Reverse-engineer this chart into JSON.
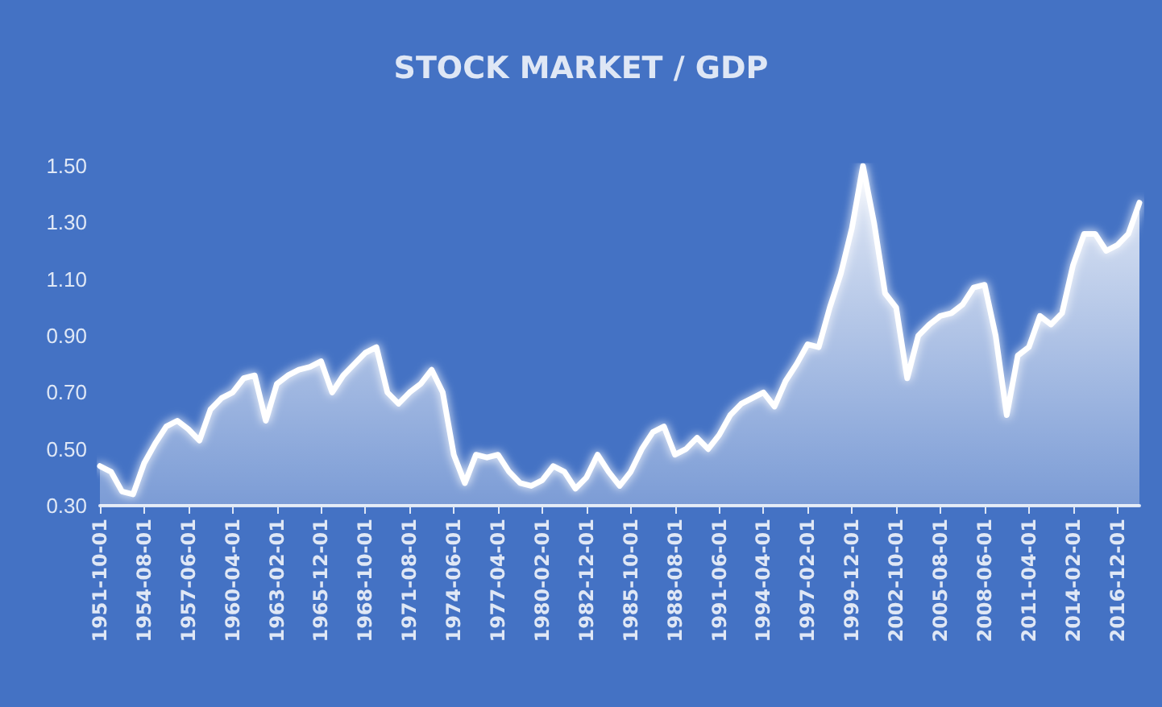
{
  "chart_data": {
    "type": "area",
    "title": "STOCK MARKET / GDP",
    "categories": [
      "1951-10-01",
      null,
      null,
      null,
      "1954-08-01",
      null,
      null,
      null,
      "1957-06-01",
      null,
      null,
      null,
      "1960-04-01",
      null,
      null,
      null,
      "1963-02-01",
      null,
      null,
      null,
      "1965-12-01",
      null,
      null,
      null,
      "1968-10-01",
      null,
      null,
      null,
      "1971-08-01",
      null,
      null,
      null,
      "1974-06-01",
      null,
      null,
      null,
      "1977-04-01",
      null,
      null,
      null,
      "1980-02-01",
      null,
      null,
      null,
      "1982-12-01",
      null,
      null,
      null,
      "1985-10-01",
      null,
      null,
      null,
      "1988-08-01",
      null,
      null,
      null,
      "1991-06-01",
      null,
      null,
      null,
      "1994-04-01",
      null,
      null,
      null,
      "1997-02-01",
      null,
      null,
      null,
      "1999-12-01",
      null,
      null,
      null,
      "2002-10-01",
      null,
      null,
      null,
      "2005-08-01",
      null,
      null,
      null,
      "2008-06-01",
      null,
      null,
      null,
      "2011-04-01",
      null,
      null,
      null,
      "2014-02-01",
      null,
      null,
      null,
      "2016-12-01",
      null,
      null
    ],
    "series": [
      {
        "color": "#ffffff",
        "values": [
          0.44,
          0.42,
          0.35,
          0.34,
          0.45,
          0.52,
          0.58,
          0.6,
          0.57,
          0.53,
          0.64,
          0.68,
          0.7,
          0.75,
          0.76,
          0.6,
          0.73,
          0.76,
          0.78,
          0.79,
          0.81,
          0.7,
          0.76,
          0.8,
          0.84,
          0.86,
          0.7,
          0.66,
          0.7,
          0.73,
          0.78,
          0.7,
          0.48,
          0.38,
          0.48,
          0.47,
          0.48,
          0.42,
          0.38,
          0.37,
          0.39,
          0.44,
          0.42,
          0.36,
          0.4,
          0.48,
          0.42,
          0.37,
          0.42,
          0.5,
          0.56,
          0.58,
          0.48,
          0.5,
          0.54,
          0.5,
          0.55,
          0.62,
          0.66,
          0.68,
          0.7,
          0.65,
          0.74,
          0.8,
          0.87,
          0.86,
          1.0,
          1.12,
          1.28,
          1.5,
          1.3,
          1.05,
          1.0,
          0.75,
          0.9,
          0.94,
          0.97,
          0.98,
          1.01,
          1.07,
          1.08,
          0.9,
          0.62,
          0.83,
          0.86,
          0.97,
          0.94,
          0.98,
          1.15,
          1.26,
          1.26,
          1.2,
          1.22,
          1.26,
          1.37
        ]
      }
    ],
    "ylim": [
      0.3,
      1.5
    ],
    "yticks": [
      {
        "value": 0.3,
        "label": "0.30"
      },
      {
        "value": 0.5,
        "label": "0.50"
      },
      {
        "value": 0.7,
        "label": "0.70"
      },
      {
        "value": 0.9,
        "label": "0.90"
      },
      {
        "value": 1.1,
        "label": "1.10"
      },
      {
        "value": 1.3,
        "label": "1.30"
      },
      {
        "value": 1.5,
        "label": "1.50"
      }
    ],
    "grid": false,
    "marker": "none",
    "line_style": "solid"
  }
}
